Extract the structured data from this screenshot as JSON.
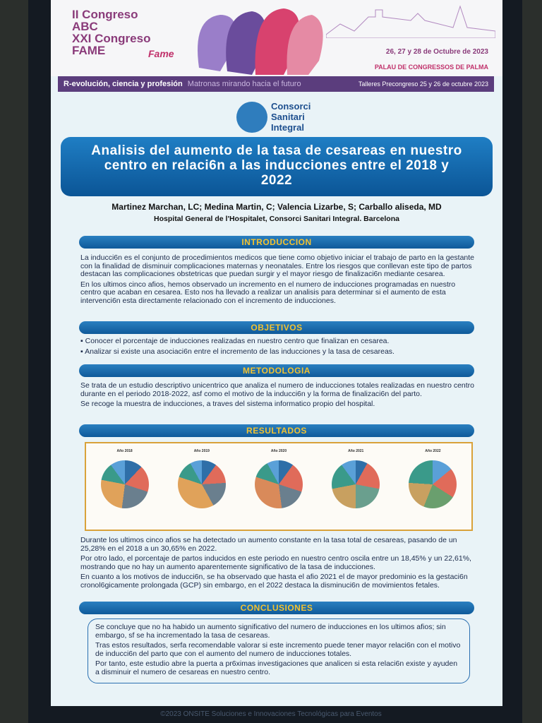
{
  "header": {
    "congress": [
      "II Congreso",
      "ABC",
      "XXI Congreso",
      "FAME"
    ],
    "brand": "Fame",
    "dates": "26, 27 y 28 de Octubre de 2023",
    "venue": "PALAU DE CONGRESSOS DE PALMA",
    "tagline": "R-evolución, ciencia y profesión",
    "tagline_sub": "Matronas mirando hacia el futuro",
    "workshops": "Talleres Precongreso 25 y 26 de octubre 2023"
  },
  "logo": [
    "Consorci",
    "Sanitari",
    "Integral"
  ],
  "title": "Analisis del aumento de la tasa de cesareas en nuestro centro en relaci6n a  las inducciones entre el 2018 y  2022",
  "authors": "Martinez Marchan, LC; Medina Martin, C; Valencia Lizarbe, S; Carballo aliseda, MD",
  "affiliation": "Hospital General de l'Hospitalet, Consorci Sanitari Integral. Barcelona",
  "introduccion": {
    "heading": "INTRODUCCION",
    "paragraphs": [
      "La inducci6n es el conjunto de procedimientos medicos que tiene como objetivo iniciar el trabajo de parto en la gestante con la finalidad de disminuir complicaciones maternas y neonatales. Entre los riesgos que conllevan este tipo de partos destacan las complicaciones obstetricas que puedan surgir y el mayor riesgo de finalizaci6n mediante cesarea.",
      "En los ultimos cinco afios, hemos observado un incremento en el numero de inducciones programadas en nuestro centro que acaban en cesarea. Esto nos ha llevado a realizar un analisis para determinar si el aumento de esta intervenci6n esta directamente relacionado con el incremento de inducciones."
    ]
  },
  "objetivos": {
    "heading": "OBJETIVOS",
    "items": [
      "Conocer el porcentaje de inducciones realizadas en nuestro centro que finalizan en cesarea.",
      "Analizar si existe una asociaci6n entre el incremento de las inducciones y la tasa de cesareas."
    ]
  },
  "metodologia": {
    "heading": "METODOLOGIA",
    "paragraphs": [
      "Se trata de un estudio descriptivo unicentrico que analiza el numero de inducciones totales realizadas en nuestro centro durante en el periodo 2018-2022, asf como el motivo de la inducci6n y la forma de finalizaci6n del parto.",
      "Se recoge la muestra de inducciones, a traves del sistema informatico propio del hospital."
    ]
  },
  "resultados": {
    "heading": "RESULTADOS",
    "charts": [
      "Año 2018",
      "Año 2019",
      "Año 2020",
      "Año 2021",
      "Año 2022"
    ],
    "paragraphs": [
      "Durante los ultimos cinco afios se ha detectado un aumento constante en la tasa total de cesareas, pasando de un 25,28% en el 2018 a un 30,65% en 2022.",
      "Por otro lado, el porcentaje de partos inducidos en este periodo en nuestro centro oscila entre un 18,45% y un 22,61%, mostrando que no hay un aumento aparentemente significativo de la tasa de inducciones.",
      "En cuanto a los motivos de inducci6n, se ha observado que hasta el afio 2021 el de mayor predominio es la gestaci6n cronol6gicamente prolongada (GCP) sin embargo, en el 2022 destaca la disminuci6n de movimientos fetales."
    ]
  },
  "conclusiones": {
    "heading": "CONCLUSIONES",
    "paragraphs": [
      "Se concluye que no ha habido un aumento significativo del numero de inducciones en los ultimos afios; sin embargo, sf se ha incrementado la tasa de cesareas.",
      "Tras estos resultados, serfa recomendable valorar si este incremento puede tener mayor relaci6n con el motivo de inducci6n del parto que con el aumento del numero de inducciones totales.",
      "Por tanto, este estudio abre la puerta a pr6ximas investigaciones que analicen si esta relaci6n existe y ayuden a disminuir el numero de cesareas en nuestro centro."
    ]
  },
  "footer": "©2023 ONSITE Soluciones e Innovaciones Tecnológicas para Eventos"
}
